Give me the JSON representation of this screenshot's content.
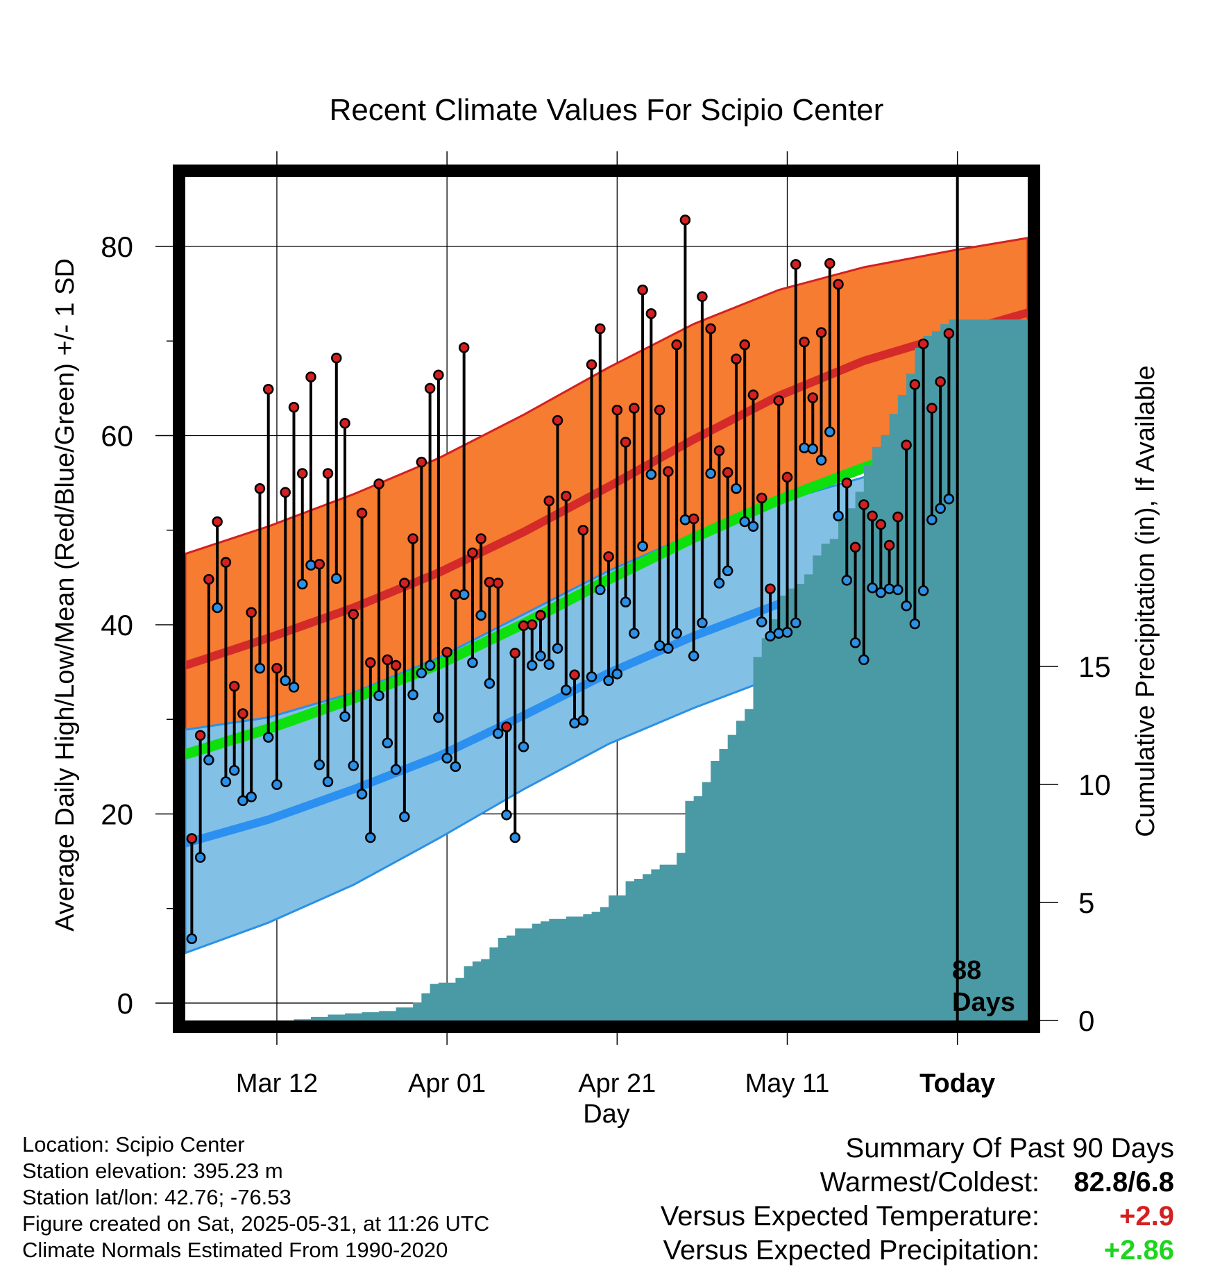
{
  "chart_data": {
    "type": "line",
    "title": "Recent Climate Values For Scipio Center",
    "xlabel": "Day",
    "ylabel_left": "Average Daily High/Low/Mean (Red/Blue/Green) +/- 1 SD",
    "ylabel_right": "Cumulative Precipitation (in), If Available",
    "x_tick_labels": [
      "Mar 12",
      "Apr 01",
      "Apr 21",
      "May 11",
      "Today"
    ],
    "x_tick_days": [
      10,
      30,
      50,
      70,
      90
    ],
    "xlim": [
      -1.5,
      99
    ],
    "ylim_left": [
      -2.5,
      88
    ],
    "ylim_right": [
      0,
      36
    ],
    "y_left_ticks": [
      0,
      20,
      40,
      60,
      80
    ],
    "y_right_ticks": [
      0,
      5,
      10,
      15
    ],
    "today_marker": {
      "day": 90,
      "label_line1": "88",
      "label_line2": "Days"
    },
    "normals": {
      "days": [
        -1,
        9,
        19,
        29,
        39,
        49,
        59,
        69,
        79,
        89,
        99
      ],
      "high_mean": [
        35.7,
        38.6,
        41.8,
        45.5,
        49.8,
        54.6,
        59.6,
        64.2,
        67.9,
        70.6,
        73.0
      ],
      "high_upper": [
        47.5,
        50.4,
        53.8,
        57.6,
        62.2,
        67.2,
        71.8,
        75.4,
        77.8,
        79.5,
        80.9
      ],
      "high_lower": [
        25.2,
        27.5,
        30.7,
        34.4,
        38.2,
        43.0,
        48.0,
        52.6,
        56.4,
        60.4,
        65.2
      ],
      "low_mean": [
        16.9,
        19.4,
        22.6,
        26.1,
        30.4,
        34.9,
        38.8,
        42.2,
        45.3,
        48.7,
        52.0
      ],
      "low_upper": [
        28.9,
        30.2,
        32.8,
        36.5,
        41.1,
        45.7,
        49.6,
        53.0,
        55.6,
        57.5,
        59.0
      ],
      "low_lower": [
        5.3,
        8.5,
        12.5,
        17.4,
        22.6,
        27.4,
        31.2,
        34.6,
        37.6,
        41.3,
        45.0
      ],
      "mean": [
        26.3,
        29.0,
        32.2,
        35.8,
        40.1,
        44.8,
        49.2,
        53.2,
        56.6,
        59.7,
        62.5
      ]
    },
    "series": [
      {
        "name": "Daily High",
        "color": "#d42020",
        "days": [
          0,
          1,
          2,
          3,
          4,
          5,
          6,
          7,
          8,
          9,
          10,
          11,
          12,
          13,
          14,
          15,
          16,
          17,
          18,
          19,
          20,
          21,
          22,
          23,
          24,
          25,
          26,
          27,
          28,
          29,
          30,
          31,
          32,
          33,
          34,
          35,
          36,
          37,
          38,
          39,
          40,
          41,
          42,
          43,
          44,
          45,
          46,
          47,
          48,
          49,
          50,
          51,
          52,
          53,
          54,
          55,
          56,
          57,
          58,
          59,
          60,
          61,
          62,
          63,
          64,
          65,
          66,
          67,
          68,
          69,
          70,
          71,
          72,
          73,
          74,
          75,
          76,
          77,
          78,
          79,
          80,
          81,
          82,
          83,
          84,
          85,
          86,
          87,
          88,
          89
        ],
        "values": [
          17.4,
          28.3,
          44.8,
          50.9,
          46.6,
          33.5,
          30.6,
          41.3,
          54.4,
          64.9,
          35.4,
          54.0,
          63.0,
          56.0,
          66.2,
          46.4,
          56.0,
          68.2,
          61.3,
          41.1,
          51.8,
          36.0,
          54.9,
          36.3,
          35.7,
          44.4,
          49.1,
          57.2,
          65.0,
          66.4,
          37.1,
          43.2,
          69.3,
          47.6,
          49.1,
          44.5,
          44.4,
          29.2,
          37.0,
          39.9,
          40.0,
          41.0,
          53.1,
          61.6,
          53.6,
          34.7,
          50.0,
          67.5,
          71.3,
          47.2,
          62.7,
          59.3,
          62.9,
          75.4,
          72.9,
          62.7,
          56.2,
          69.6,
          82.8,
          51.2,
          74.7,
          71.3,
          58.4,
          56.1,
          68.1,
          69.6,
          64.3,
          53.4,
          43.8,
          63.7,
          55.6,
          78.1,
          69.9,
          64.0,
          70.9,
          78.2,
          76.0,
          55.0,
          48.2,
          52.7,
          51.5,
          50.6,
          48.4,
          51.4,
          59.0,
          65.4,
          69.7,
          62.9,
          65.7,
          70.8
        ]
      },
      {
        "name": "Daily Low",
        "color": "#2b90e6",
        "days": [
          0,
          1,
          2,
          3,
          4,
          5,
          6,
          7,
          8,
          9,
          10,
          11,
          12,
          13,
          14,
          15,
          16,
          17,
          18,
          19,
          20,
          21,
          22,
          23,
          24,
          25,
          26,
          27,
          28,
          29,
          30,
          31,
          32,
          33,
          34,
          35,
          36,
          37,
          38,
          39,
          40,
          41,
          42,
          43,
          44,
          45,
          46,
          47,
          48,
          49,
          50,
          51,
          52,
          53,
          54,
          55,
          56,
          57,
          58,
          59,
          60,
          61,
          62,
          63,
          64,
          65,
          66,
          67,
          68,
          69,
          70,
          71,
          72,
          73,
          74,
          75,
          76,
          77,
          78,
          79,
          80,
          81,
          82,
          83,
          84,
          85,
          86,
          87,
          88,
          89
        ],
        "values": [
          6.8,
          15.4,
          25.7,
          41.8,
          23.4,
          24.6,
          21.4,
          21.8,
          35.4,
          28.1,
          23.1,
          34.1,
          33.4,
          44.3,
          46.3,
          25.2,
          23.4,
          44.9,
          30.3,
          25.1,
          22.1,
          17.5,
          32.5,
          27.5,
          24.7,
          19.7,
          32.6,
          34.9,
          35.7,
          30.2,
          25.9,
          25.0,
          43.2,
          36.0,
          41.0,
          33.8,
          28.5,
          19.9,
          17.5,
          27.1,
          35.7,
          36.7,
          35.8,
          37.5,
          33.1,
          29.6,
          29.9,
          34.5,
          43.7,
          34.1,
          34.8,
          42.4,
          39.1,
          48.3,
          55.9,
          37.8,
          37.5,
          39.1,
          51.1,
          36.7,
          40.2,
          56.0,
          44.4,
          45.7,
          54.4,
          50.9,
          50.4,
          40.3,
          38.8,
          39.1,
          39.2,
          40.2,
          58.7,
          58.6,
          57.4,
          60.4,
          51.5,
          44.7,
          38.1,
          36.3,
          43.9,
          43.4,
          43.8,
          43.7,
          42.0,
          40.1,
          43.6,
          51.1,
          52.3,
          53.3
        ]
      },
      {
        "name": "Cumulative Precipitation",
        "color": "#4a9aa5",
        "days": [
          12,
          14,
          16,
          18,
          20,
          22,
          24,
          26,
          27,
          28,
          29,
          31,
          32,
          33,
          34,
          35,
          36,
          37,
          38,
          39,
          40,
          41,
          42,
          44,
          46,
          47,
          48,
          49,
          50,
          51,
          52,
          53,
          54,
          55,
          57,
          58,
          59,
          60,
          61,
          62,
          63,
          64,
          65,
          66,
          67,
          68,
          69,
          70,
          71,
          72,
          73,
          74,
          75,
          76,
          77,
          78,
          79,
          80,
          81,
          82,
          83,
          84,
          85,
          86,
          87,
          88,
          89,
          99
        ],
        "values": [
          0.05,
          0.15,
          0.25,
          0.3,
          0.35,
          0.4,
          0.55,
          0.75,
          1.15,
          1.55,
          1.6,
          1.8,
          2.3,
          2.5,
          2.6,
          3.1,
          3.5,
          3.6,
          3.9,
          3.9,
          4.1,
          4.2,
          4.3,
          4.4,
          4.5,
          4.6,
          4.8,
          5.3,
          5.3,
          5.9,
          6.0,
          6.2,
          6.4,
          6.6,
          7.1,
          9.3,
          9.5,
          10.1,
          11.0,
          11.5,
          12.1,
          12.7,
          13.2,
          15.4,
          16.2,
          17.0,
          18.0,
          18.3,
          18.5,
          18.9,
          19.7,
          20.2,
          20.4,
          21.3,
          21.7,
          22.4,
          23.5,
          24.3,
          24.8,
          25.7,
          26.5,
          27.4,
          28.5,
          29.0,
          29.2,
          29.5,
          29.7,
          29.7
        ]
      }
    ]
  },
  "info_left": {
    "location": "Location: Scipio Center",
    "elevation": "Station elevation: 395.23 m",
    "latlon": "Station lat/lon: 42.76; -76.53",
    "created": "Figure created on Sat, 2025-05-31, at 11:26 UTC",
    "normals_source": "Climate Normals Estimated From 1990-2020"
  },
  "summary": {
    "title": "Summary Of Past 90 Days",
    "warmest_coldest_label": "Warmest/Coldest:",
    "warmest_coldest_value": "82.8/6.8",
    "temp_label": "Versus Expected Temperature:",
    "temp_value": "+2.9",
    "temp_color": "#d42020",
    "precip_label": "Versus Expected Precipitation:",
    "precip_value": "+2.86",
    "precip_color": "#1ed41e"
  }
}
